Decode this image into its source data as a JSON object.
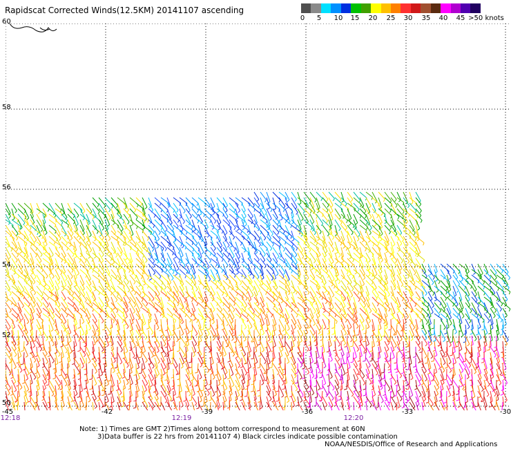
{
  "title": "Rapidscat Corrected Winds(12.5KM) 20141107 ascending",
  "colorbar": {
    "colors": [
      "#505050",
      "#8a8a8a",
      "#00e0ff",
      "#0090ff",
      "#0030e0",
      "#00c000",
      "#40a000",
      "#ffff00",
      "#ffc000",
      "#ff8000",
      "#ff3030",
      "#d01818",
      "#a05030",
      "#5a2a10",
      "#ff00ff",
      "#b000d0",
      "#5000b0",
      "#200060"
    ],
    "labels": [
      "0",
      "5",
      "10",
      "15",
      "20",
      "25",
      "30",
      "35",
      "40",
      "45",
      ">50 knots"
    ]
  },
  "axes": {
    "lat_labels": [
      "60",
      "58",
      "56",
      "54",
      "52",
      "50"
    ],
    "lon_labels": [
      "-45",
      "-42",
      "-39",
      "-36",
      "-33",
      "-30"
    ],
    "time_labels": [
      "12:18",
      "12:19",
      "12:20"
    ]
  },
  "notes": {
    "line1": "Note: 1) Times are GMT 2)Times along bottom correspond to measurement at 60N",
    "line2": "3)Data buffer is 22 hrs from 20141107 4) Black circles indicate possible contamination",
    "line3": "NOAA/NESDIS/Office of Research and Applications"
  }
}
